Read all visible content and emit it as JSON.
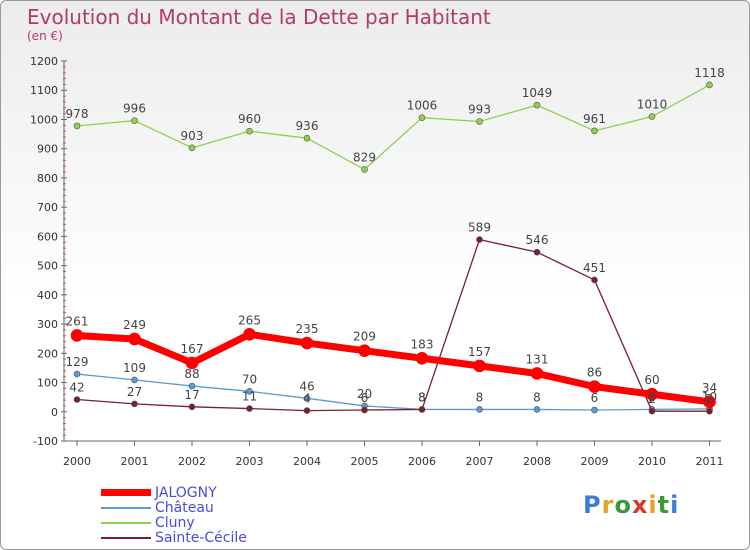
{
  "title": "Evolution du Montant de la Dette par Habitant",
  "subtitle": "(en €)",
  "logo": "Proxiti",
  "chart_data": {
    "type": "line",
    "title": "Evolution du Montant de la Dette par Habitant",
    "subtitle": "(en €)",
    "x": [
      "2000",
      "2001",
      "2002",
      "2003",
      "2004",
      "2005",
      "2006",
      "2007",
      "2008",
      "2009",
      "2010",
      "2011"
    ],
    "ylim": [
      -100,
      1200
    ],
    "yticks": [
      -100,
      0,
      100,
      200,
      300,
      400,
      500,
      600,
      700,
      800,
      900,
      1000,
      1100,
      1200
    ],
    "grid": false,
    "legend": "bottom-left",
    "series": [
      {
        "name": "JALOGNY",
        "color": "#ff0000",
        "values": [
          261,
          249,
          167,
          265,
          235,
          209,
          183,
          157,
          131,
          86,
          60,
          34
        ]
      },
      {
        "name": "Château",
        "color": "#5b9bd5",
        "values": [
          129,
          109,
          88,
          70,
          46,
          20,
          8,
          8,
          8,
          6,
          8,
          10
        ]
      },
      {
        "name": "Cluny",
        "color": "#8fd14f",
        "values": [
          978,
          996,
          903,
          960,
          936,
          829,
          1006,
          993,
          1049,
          961,
          1010,
          1118
        ]
      },
      {
        "name": "Sainte-Cécile",
        "color": "#7a1f2b",
        "values": [
          42,
          27,
          17,
          11,
          4,
          6,
          8,
          589,
          546,
          451,
          2,
          2
        ]
      }
    ]
  }
}
